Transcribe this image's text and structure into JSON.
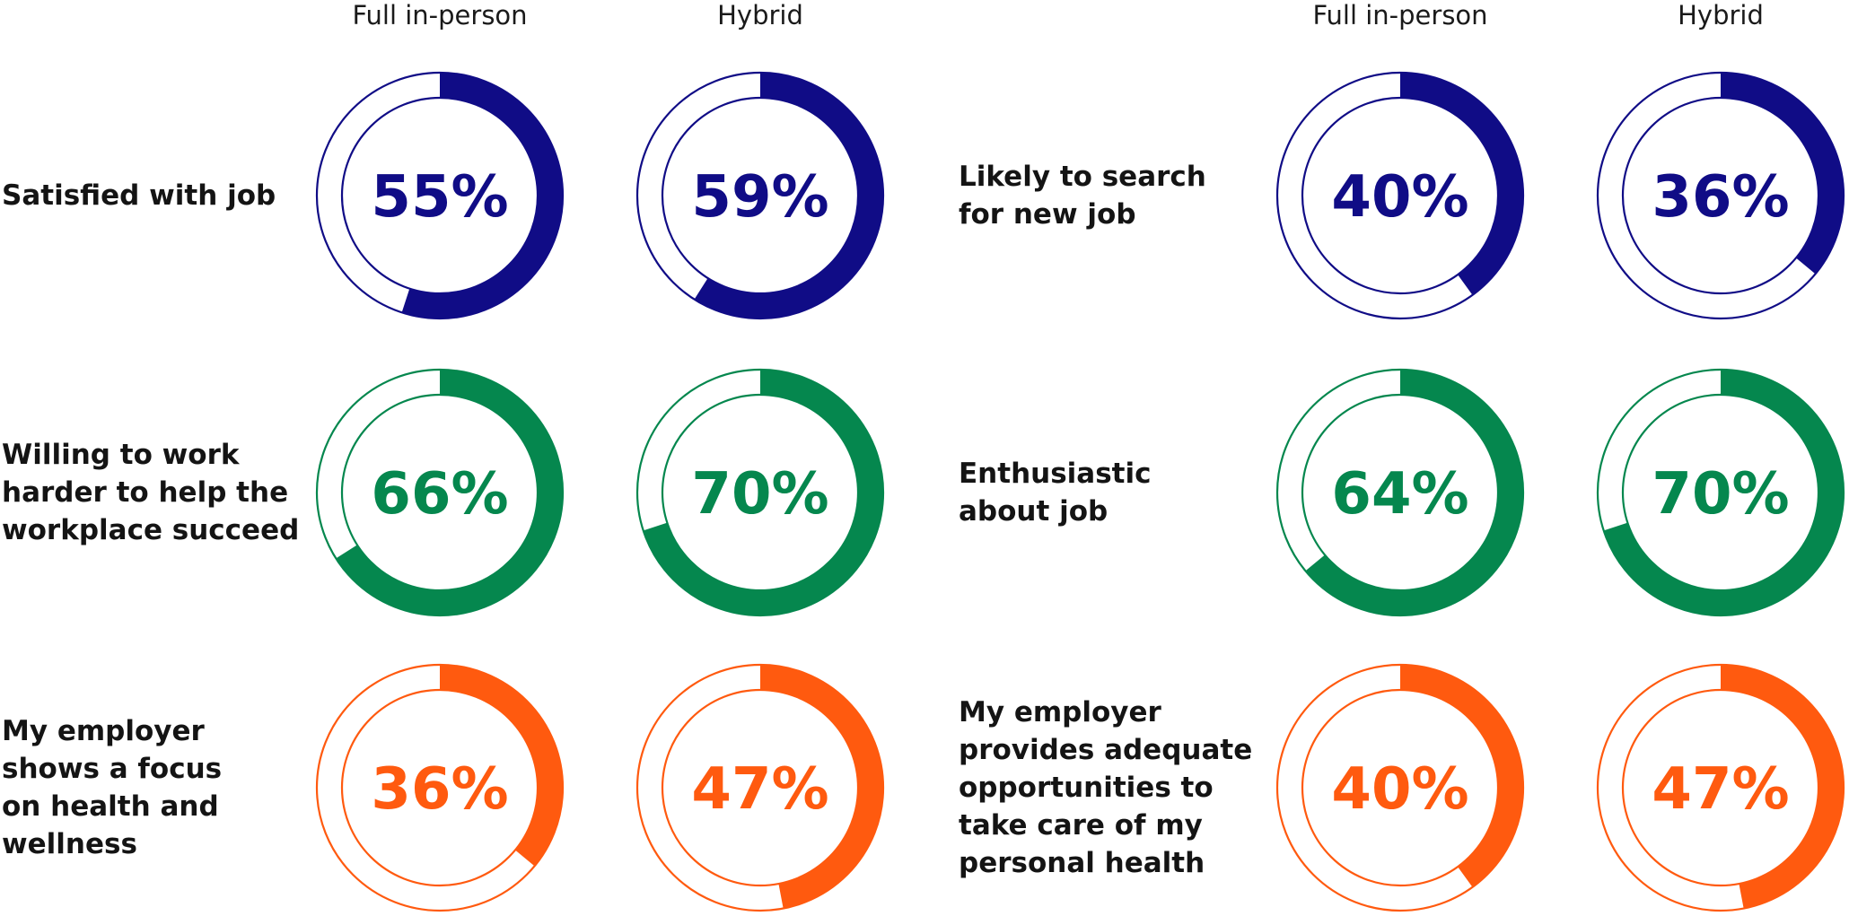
{
  "chart_data": {
    "type": "donut",
    "column_headers": [
      "Full in-person",
      "Hybrid",
      "Full in-person",
      "Hybrid"
    ],
    "panels": [
      {
        "column_headers": [
          "Full in-person",
          "Hybrid"
        ],
        "rows": [
          {
            "label_lines": [
              "Satisfied with job"
            ],
            "color": "#100C86",
            "values": [
              55,
              59
            ],
            "value_labels": [
              "55%",
              "59%"
            ]
          },
          {
            "label_lines": [
              "Willing to work",
              "harder to help the",
              "workplace succeed"
            ],
            "color": "#05874E",
            "values": [
              66,
              70
            ],
            "value_labels": [
              "66%",
              "70%"
            ]
          },
          {
            "label_lines": [
              "My employer",
              "shows a focus",
              "on health and",
              "wellness"
            ],
            "color": "#FF5A0F",
            "values": [
              36,
              47
            ],
            "value_labels": [
              "36%",
              "47%"
            ]
          }
        ]
      },
      {
        "column_headers": [
          "Full in-person",
          "Hybrid"
        ],
        "rows": [
          {
            "label_lines": [
              "Likely to search",
              "for new job"
            ],
            "color": "#100C86",
            "values": [
              40,
              36
            ],
            "value_labels": [
              "40%",
              "36%"
            ]
          },
          {
            "label_lines": [
              "Enthusiastic",
              "about job"
            ],
            "color": "#05874E",
            "values": [
              64,
              70
            ],
            "value_labels": [
              "64%",
              "70%"
            ]
          },
          {
            "label_lines": [
              "My employer",
              "provides adequate",
              "opportunities to",
              "take care of my",
              "personal health"
            ],
            "color": "#FF5A0F",
            "values": [
              40,
              47
            ],
            "value_labels": [
              "40%",
              "47%"
            ]
          }
        ]
      }
    ]
  }
}
